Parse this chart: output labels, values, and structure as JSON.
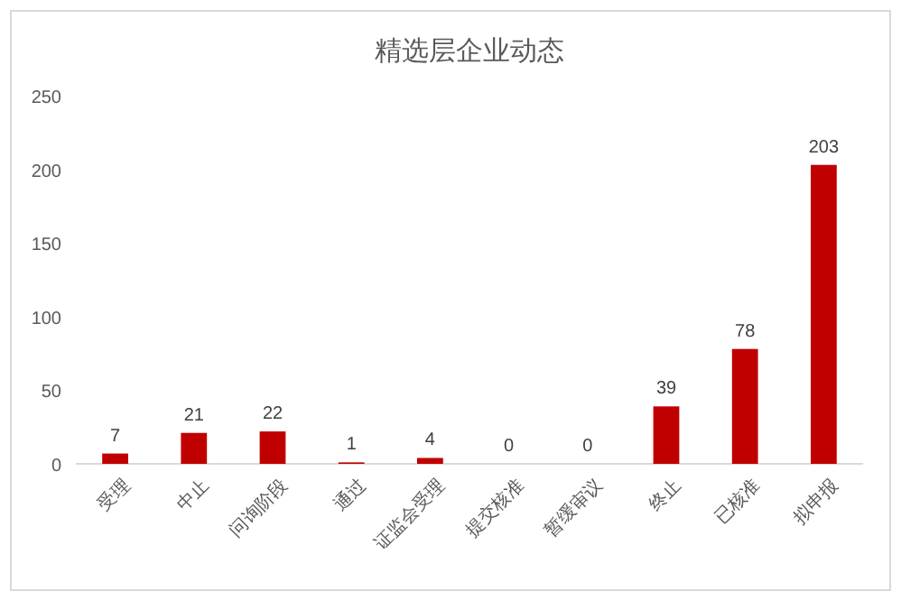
{
  "chart_data": {
    "type": "bar",
    "title": "精选层企业动态",
    "categories": [
      "受理",
      "中止",
      "问询阶段",
      "通过",
      "证监会受理",
      "提交核准",
      "暂缓审议",
      "终止",
      "已核准",
      "拟申报"
    ],
    "values": [
      7,
      21,
      22,
      1,
      4,
      0,
      0,
      39,
      78,
      203
    ],
    "color": "#c00000",
    "ylim": [
      0,
      250
    ],
    "yticks": [
      0,
      50,
      100,
      150,
      200,
      250
    ],
    "grid": false,
    "data_labels": true
  }
}
